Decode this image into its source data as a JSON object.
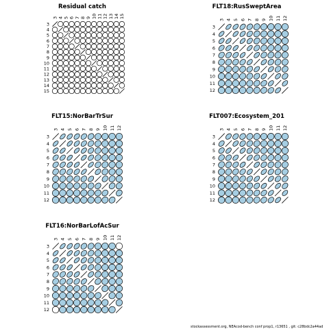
{
  "footer": "stockassessment.org,  NEAcod-bench  conf  prop1,  r13651 ,  git:  c28bdc2a44ad",
  "colors": {
    "positive_fill": "#a6cee3",
    "stroke": "#000000",
    "background": "#ffffff"
  },
  "chart_data": [
    {
      "type": "correlation-matrix",
      "title": "Residual catch",
      "labels": [
        "3",
        "4",
        "5",
        "6",
        "7",
        "8",
        "9",
        "10",
        "11",
        "12",
        "13",
        "14",
        "15"
      ],
      "values": [
        [
          1,
          0,
          0,
          0,
          0,
          0,
          0,
          0,
          0,
          0,
          0,
          0,
          0
        ],
        [
          0,
          1,
          0,
          0,
          0,
          0,
          0,
          0,
          0,
          0,
          0,
          0,
          0
        ],
        [
          0,
          0,
          1,
          0,
          0,
          0,
          0,
          0,
          0,
          0,
          0,
          0,
          0
        ],
        [
          0,
          0,
          0,
          1,
          0,
          0,
          0,
          0,
          0,
          0,
          0,
          0,
          0
        ],
        [
          0,
          0,
          0,
          0,
          1,
          0,
          0,
          0,
          0,
          0,
          0,
          0,
          0
        ],
        [
          0,
          0,
          0,
          0,
          0,
          1,
          0,
          0,
          0,
          0,
          0,
          0,
          0
        ],
        [
          0,
          0,
          0,
          0,
          0,
          0,
          1,
          0,
          0,
          0,
          0,
          0,
          0
        ],
        [
          0,
          0,
          0,
          0,
          0,
          0,
          0,
          1,
          0,
          0,
          0,
          0,
          0
        ],
        [
          0,
          0,
          0,
          0,
          0,
          0,
          0,
          0,
          1,
          0,
          0,
          0,
          0
        ],
        [
          0,
          0,
          0,
          0,
          0,
          0,
          0,
          0,
          0,
          1,
          0,
          0,
          0
        ],
        [
          0,
          0,
          0,
          0,
          0,
          0,
          0,
          0,
          0,
          0,
          1,
          0,
          0
        ],
        [
          0,
          0,
          0,
          0,
          0,
          0,
          0,
          0,
          0,
          0,
          0,
          1,
          0
        ],
        [
          0,
          0,
          0,
          0,
          0,
          0,
          0,
          0,
          0,
          0,
          0,
          0,
          1
        ]
      ]
    },
    {
      "type": "correlation-matrix",
      "title": "FLT18:RusSweptArea",
      "labels": [
        "3",
        "4",
        "5",
        "6",
        "7",
        "8",
        "9",
        "10",
        "11",
        "12"
      ],
      "values": [
        [
          1,
          0.85,
          0.8,
          0.75,
          0.65,
          0.5,
          0.4,
          0.25,
          0.15,
          0.1
        ],
        [
          0.85,
          1,
          0.85,
          0.8,
          0.7,
          0.55,
          0.45,
          0.3,
          0.2,
          0.1
        ],
        [
          0.8,
          0.85,
          1,
          0.85,
          0.75,
          0.6,
          0.5,
          0.35,
          0.25,
          0.15
        ],
        [
          0.75,
          0.8,
          0.85,
          1,
          0.85,
          0.7,
          0.55,
          0.45,
          0.35,
          0.25
        ],
        [
          0.65,
          0.7,
          0.75,
          0.85,
          1,
          0.8,
          0.65,
          0.55,
          0.45,
          0.35
        ],
        [
          0.5,
          0.55,
          0.6,
          0.7,
          0.8,
          1,
          0.8,
          0.65,
          0.55,
          0.45
        ],
        [
          0.4,
          0.45,
          0.5,
          0.55,
          0.65,
          0.8,
          1,
          0.8,
          0.65,
          0.55
        ],
        [
          0.25,
          0.3,
          0.35,
          0.45,
          0.55,
          0.65,
          0.8,
          1,
          0.8,
          0.65
        ],
        [
          0.15,
          0.2,
          0.25,
          0.35,
          0.45,
          0.55,
          0.65,
          0.8,
          1,
          0.8
        ],
        [
          0.1,
          0.1,
          0.15,
          0.25,
          0.35,
          0.45,
          0.55,
          0.65,
          0.8,
          1
        ]
      ]
    },
    {
      "type": "correlation-matrix",
      "title": "FLT15:NorBarTrSur",
      "labels": [
        "3",
        "4",
        "5",
        "6",
        "7",
        "8",
        "9",
        "10",
        "11",
        "12"
      ],
      "values": [
        [
          1,
          0.85,
          0.8,
          0.75,
          0.7,
          0.6,
          0.45,
          0.3,
          0.15,
          0.05
        ],
        [
          0.85,
          1,
          0.85,
          0.8,
          0.75,
          0.65,
          0.5,
          0.35,
          0.2,
          0.1
        ],
        [
          0.8,
          0.85,
          1,
          0.85,
          0.8,
          0.7,
          0.55,
          0.4,
          0.25,
          0.15
        ],
        [
          0.75,
          0.8,
          0.85,
          1,
          0.85,
          0.75,
          0.6,
          0.45,
          0.3,
          0.2
        ],
        [
          0.7,
          0.75,
          0.8,
          0.85,
          1,
          0.85,
          0.65,
          0.5,
          0.35,
          0.25
        ],
        [
          0.6,
          0.65,
          0.7,
          0.75,
          0.85,
          1,
          0.75,
          0.55,
          0.4,
          0.3
        ],
        [
          0.45,
          0.5,
          0.55,
          0.6,
          0.65,
          0.75,
          1,
          0.65,
          0.5,
          0.35
        ],
        [
          0.3,
          0.35,
          0.4,
          0.45,
          0.5,
          0.55,
          0.65,
          1,
          0.6,
          0.45
        ],
        [
          0.15,
          0.2,
          0.25,
          0.3,
          0.35,
          0.4,
          0.5,
          0.6,
          1,
          0.55
        ],
        [
          0.05,
          0.1,
          0.15,
          0.2,
          0.25,
          0.3,
          0.35,
          0.45,
          0.55,
          1
        ]
      ]
    },
    {
      "type": "correlation-matrix",
      "title": "FLT007:Ecosystem_201",
      "labels": [
        "3",
        "4",
        "5",
        "6",
        "7",
        "8",
        "9",
        "10",
        "11",
        "12"
      ],
      "values": [
        [
          1,
          0.75,
          0.7,
          0.6,
          0.5,
          0.4,
          0.3,
          0.2,
          0.15,
          0.1
        ],
        [
          0.75,
          1,
          0.8,
          0.7,
          0.6,
          0.5,
          0.4,
          0.3,
          0.2,
          0.15
        ],
        [
          0.7,
          0.8,
          1,
          0.8,
          0.7,
          0.6,
          0.5,
          0.4,
          0.3,
          0.2
        ],
        [
          0.6,
          0.7,
          0.8,
          1,
          0.8,
          0.7,
          0.6,
          0.5,
          0.4,
          0.3
        ],
        [
          0.5,
          0.6,
          0.7,
          0.8,
          1,
          0.8,
          0.7,
          0.6,
          0.5,
          0.4
        ],
        [
          0.4,
          0.5,
          0.6,
          0.7,
          0.8,
          1,
          0.8,
          0.7,
          0.6,
          0.5
        ],
        [
          0.3,
          0.4,
          0.5,
          0.6,
          0.7,
          0.8,
          1,
          0.8,
          0.7,
          0.6
        ],
        [
          0.2,
          0.3,
          0.4,
          0.5,
          0.6,
          0.7,
          0.8,
          1,
          0.8,
          0.7
        ],
        [
          0.15,
          0.2,
          0.3,
          0.4,
          0.5,
          0.6,
          0.7,
          0.8,
          1,
          0.8
        ],
        [
          0.1,
          0.15,
          0.2,
          0.3,
          0.4,
          0.5,
          0.6,
          0.7,
          0.8,
          1
        ]
      ]
    },
    {
      "type": "correlation-matrix",
      "title": "FLT16:NorBarLofAcSur",
      "labels": [
        "3",
        "4",
        "5",
        "6",
        "7",
        "8",
        "9",
        "10",
        "11",
        "12"
      ],
      "values": [
        [
          1,
          0.85,
          0.8,
          0.75,
          0.65,
          0.55,
          0.35,
          0.15,
          0.05,
          0
        ],
        [
          0.85,
          1,
          0.85,
          0.8,
          0.7,
          0.6,
          0.4,
          0.2,
          0.1,
          0.05
        ],
        [
          0.8,
          0.85,
          1,
          0.85,
          0.75,
          0.65,
          0.45,
          0.25,
          0.1,
          0.05
        ],
        [
          0.75,
          0.8,
          0.85,
          1,
          0.8,
          0.7,
          0.5,
          0.3,
          0.15,
          0.1
        ],
        [
          0.65,
          0.7,
          0.75,
          0.8,
          1,
          0.75,
          0.55,
          0.35,
          0.2,
          0.1
        ],
        [
          0.55,
          0.6,
          0.65,
          0.7,
          0.75,
          1,
          0.6,
          0.4,
          0.25,
          0.15
        ],
        [
          0.35,
          0.4,
          0.45,
          0.5,
          0.55,
          0.6,
          1,
          0.45,
          0.3,
          0.2
        ],
        [
          0.15,
          0.2,
          0.25,
          0.3,
          0.35,
          0.4,
          0.45,
          1,
          0.35,
          0.25
        ],
        [
          0.05,
          0.1,
          0.1,
          0.15,
          0.2,
          0.25,
          0.3,
          0.35,
          1,
          0.3
        ],
        [
          0,
          0.05,
          0.05,
          0.1,
          0.1,
          0.15,
          0.2,
          0.25,
          0.3,
          1
        ]
      ]
    }
  ]
}
